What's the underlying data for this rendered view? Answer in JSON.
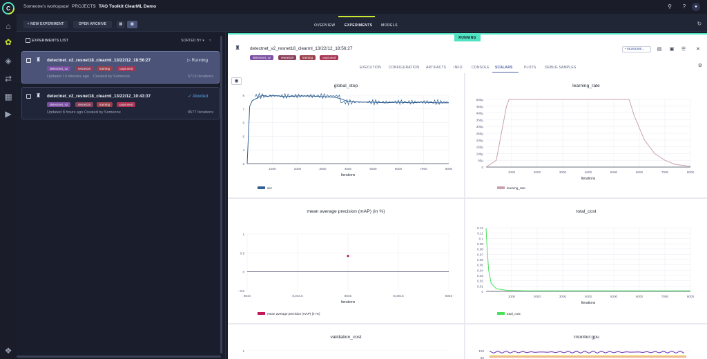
{
  "breadcrumb": {
    "workspace": "Someone's workspace",
    "projects": "PROJECTS",
    "project": "TAO Toolkit ClearML Demo"
  },
  "header_tabs": [
    "OVERVIEW",
    "EXPERIMENTS",
    "MODELS"
  ],
  "toolbar": {
    "new_experiment": "+ NEW EXPERIMENT",
    "open_archive": "OPEN ARCHIVE",
    "list_title": "EXPERIMENTS LIST",
    "sorted_by": "SORTED BY ▾"
  },
  "experiments": [
    {
      "name": "detectnet_v2_resnet18_clearml_13/22/12_18:56:27",
      "status": "▷ Running",
      "tags": [
        "detectnet_v2",
        "resnet18",
        "training",
        "unpruned"
      ],
      "updated": "Updated 13 minutes ago",
      "created": "Created by Someone",
      "iterations": "5713 Iterations"
    },
    {
      "name": "detectnet_v2_resnet18_clearml_13/22/12_10:43:37",
      "status": "✓ Aborted",
      "tags": [
        "detectnet_v2",
        "resnet18",
        "training",
        "unpruned"
      ],
      "updated": "Updated 8 hours ago",
      "created": "Created by Someone",
      "iterations": "8577 Iterations"
    }
  ],
  "detail": {
    "status_badge": "RUNNING",
    "title": "detectnet_v2_resnet18_clearml_13/22/12_18:56:27",
    "tags": [
      "detectnet_v2",
      "resnet18",
      "training",
      "unpruned"
    ],
    "id_box": "• 85283385...",
    "tabs": [
      "EXECUTION",
      "CONFIGURATION",
      "ARTIFACTS",
      "INFO",
      "CONSOLE",
      "SCALARS",
      "PLOTS",
      "DEBUG SAMPLES"
    ],
    "active_tab": "SCALARS"
  },
  "colors": {
    "accent": "#c9e82f",
    "running": "#4fe3c1",
    "tag_detectnet": "#7b4ea3",
    "tag_resnet": "#8a3f5a",
    "tag_training": "#9a3f4a",
    "tag_unpruned": "#a83452",
    "series_blue": "#2f5f93",
    "series_pink": "#c9a0b0",
    "series_red": "#c2185b",
    "series_green": "#4be05a"
  },
  "chart_data": [
    {
      "type": "line",
      "title": "global_step",
      "xlabel": "Iterations",
      "xlim": [
        0,
        8000
      ],
      "ylim": [
        3,
        8
      ],
      "xticks": [
        "1000",
        "2000",
        "3000",
        "4000",
        "5000",
        "6000",
        "7000",
        "8000"
      ],
      "yticks": [
        "3",
        "4",
        "5",
        "6",
        "7",
        "8"
      ],
      "series": [
        {
          "name": "sec",
          "values_hint": "approx 7.5-8.0, rising from 3 at start"
        }
      ],
      "x": [
        0,
        100,
        200,
        400,
        600,
        800,
        1000,
        1500,
        2000,
        2500,
        3000,
        3500,
        3700,
        4000,
        4500,
        5000,
        5500,
        6000,
        6500,
        7000,
        7500,
        8000
      ],
      "y": [
        3,
        7.2,
        7.6,
        7.8,
        8.0,
        7.9,
        8.0,
        7.9,
        7.95,
        7.95,
        7.9,
        7.85,
        7.75,
        7.55,
        7.5,
        7.5,
        7.45,
        7.5,
        7.45,
        7.5,
        7.45,
        7.45
      ]
    },
    {
      "type": "line",
      "title": "learning_rate",
      "xlabel": "Iterations",
      "xlim": [
        0,
        8000
      ],
      "ylim": [
        0,
        0.0005
      ],
      "xticks": [
        "1000",
        "2000",
        "3000",
        "4000",
        "5000",
        "6000",
        "7000",
        "8000"
      ],
      "yticks": [
        "0",
        "50μ",
        "100μ",
        "150μ",
        "200μ",
        "250μ",
        "300μ",
        "350μ",
        "400μ",
        "450μ",
        "500μ"
      ],
      "series": [
        {
          "name": "learning_rate"
        }
      ],
      "x": [
        0,
        400,
        600,
        800,
        900,
        5600,
        5800,
        6200,
        6600,
        7000,
        7400,
        8000
      ],
      "y": [
        0,
        5e-05,
        0.00025,
        0.00045,
        0.0005,
        0.0005,
        0.00038,
        0.0002,
        0.0001,
        5e-05,
        2e-05,
        5e-06
      ]
    },
    {
      "type": "scatter",
      "title": "mean average precision (mAP) (in %)",
      "xlabel": "Iterations",
      "xlim": [
        8044,
        8046
      ],
      "ylim": [
        -0.5,
        1
      ],
      "xticks": [
        "8044",
        "8,044.5",
        "8045",
        "8,045.5",
        "8046"
      ],
      "yticks": [
        "−0.5",
        "0",
        "0.5",
        "1"
      ],
      "series": [
        {
          "name": "mean average precision (mAP) (in %)"
        }
      ],
      "x": [
        8045
      ],
      "y": [
        0.42
      ]
    },
    {
      "type": "line",
      "title": "total_cost",
      "xlabel": "Iterations",
      "xlim": [
        0,
        8000
      ],
      "ylim": [
        0,
        0.12
      ],
      "xticks": [
        "1000",
        "2000",
        "3000",
        "4000",
        "5000",
        "6000",
        "7000",
        "8000"
      ],
      "yticks": [
        "0",
        "0.01",
        "0.02",
        "0.03",
        "0.04",
        "0.05",
        "0.06",
        "0.07",
        "0.08",
        "0.09",
        "0.1",
        "0.11",
        "0.12"
      ],
      "series": [
        {
          "name": "total_cost"
        }
      ],
      "x": [
        0,
        30,
        100,
        200,
        400,
        800,
        1500,
        3000,
        8000
      ],
      "y": [
        0.12,
        0.09,
        0.04,
        0.015,
        0.005,
        0.002,
        0.001,
        0.001,
        0.001
      ]
    },
    {
      "type": "line",
      "title": "validation_cost",
      "yticks": [
        "1"
      ]
    },
    {
      "type": "line",
      "title": ":monitor:gpu",
      "yticks": [
        "100",
        "80"
      ]
    }
  ]
}
